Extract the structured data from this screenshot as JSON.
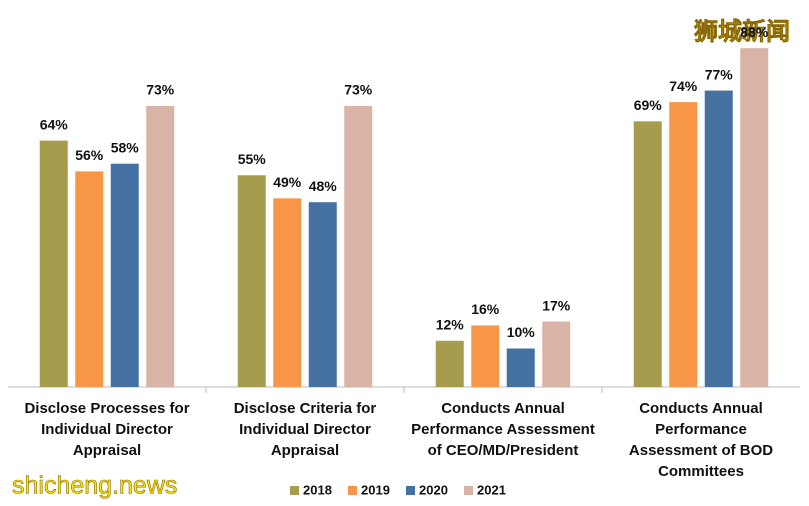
{
  "chart_data": {
    "type": "bar",
    "categories": [
      [
        "Disclose Processes for",
        "Individual Director",
        "Appraisal"
      ],
      [
        "Disclose Criteria for",
        "Individual Director",
        "Appraisal"
      ],
      [
        "Conducts Annual",
        "Performance Assessment",
        "of CEO/MD/President"
      ],
      [
        "Conducts Annual",
        "Performance",
        "Assessment of BOD",
        "Committees"
      ]
    ],
    "series": [
      {
        "name": "2018",
        "color": "#a59c4e",
        "values": [
          64,
          55,
          12,
          69
        ],
        "value_labels": [
          "64%",
          "55%",
          "12%",
          "69%"
        ]
      },
      {
        "name": "2019",
        "color": "#f79646",
        "values": [
          56,
          49,
          16,
          74
        ],
        "value_labels": [
          "56%",
          "49%",
          "16%",
          "74%"
        ]
      },
      {
        "name": "2020",
        "color": "#4571a2",
        "values": [
          58,
          48,
          10,
          77
        ],
        "value_labels": [
          "58%",
          "48%",
          "10%",
          "77%"
        ]
      },
      {
        "name": "2021",
        "color": "#d9b3a6",
        "values": [
          73,
          73,
          17,
          88
        ],
        "value_labels": [
          "73%",
          "73%",
          "17%",
          "88%"
        ]
      }
    ],
    "ylim": [
      0,
      100
    ],
    "legend": "bottom",
    "watermarks": [
      "狮城新闻",
      "shicheng.news"
    ]
  }
}
